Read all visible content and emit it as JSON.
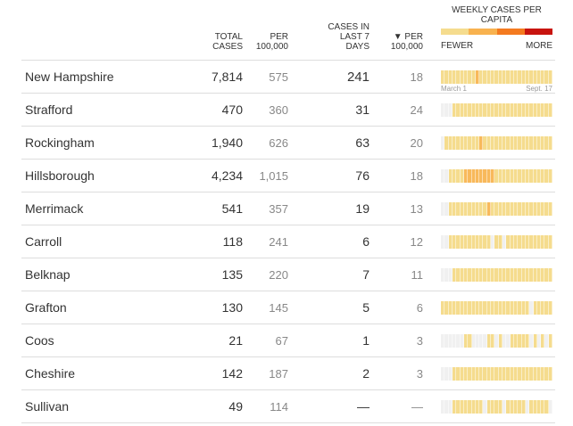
{
  "header": {
    "total": "TOTAL CASES",
    "per": "PER 100,000",
    "cases7": "CASES IN LAST 7 DAYS",
    "per7": "▼ PER 100,000",
    "legend_title": "WEEKLY CASES PER CAPITA",
    "fewer": "FEWER",
    "more": "MORE",
    "start_date": "March 1",
    "end_date": "Sept. 17"
  },
  "colors": {
    "0": "#f0f0f0",
    "1": "#f5dc8e",
    "2": "#f8b95b",
    "3": "#f47a1f",
    "4": "#c8140f"
  },
  "rows": [
    {
      "name": "New Hampshire",
      "total": "7,814",
      "per": "575",
      "cases7": "241",
      "per7": "18",
      "weeks": "11111111121111111111111111111"
    },
    {
      "name": "Strafford",
      "total": "470",
      "per": "360",
      "cases7": "31",
      "per7": "24",
      "weeks": "00011111111111111111111111111"
    },
    {
      "name": "Rockingham",
      "total": "1,940",
      "per": "626",
      "cases7": "63",
      "per7": "20",
      "weeks": "01111111112111111111111111111"
    },
    {
      "name": "Hillsborough",
      "total": "4,234",
      "per": "1,015",
      "cases7": "76",
      "per7": "18",
      "weeks": "00111122222222111111111111111"
    },
    {
      "name": "Merrimack",
      "total": "541",
      "per": "357",
      "cases7": "19",
      "per7": "13",
      "weeks": "00111111111121111111111111111"
    },
    {
      "name": "Carroll",
      "total": "118",
      "per": "241",
      "cases7": "6",
      "per7": "12",
      "weeks": "00111111111110110111111111111"
    },
    {
      "name": "Belknap",
      "total": "135",
      "per": "220",
      "cases7": "7",
      "per7": "11",
      "weeks": "00011111111111111111111111111"
    },
    {
      "name": "Grafton",
      "total": "130",
      "per": "145",
      "cases7": "5",
      "per7": "6",
      "weeks": "11111111111111111111111011111"
    },
    {
      "name": "Coos",
      "total": "21",
      "per": "67",
      "cases7": "1",
      "per7": "3",
      "weeks": "00000011000011010011111010101"
    },
    {
      "name": "Cheshire",
      "total": "142",
      "per": "187",
      "cases7": "2",
      "per7": "3",
      "weeks": "00011111111111111111111111111"
    },
    {
      "name": "Sullivan",
      "total": "49",
      "per": "114",
      "cases7": "—",
      "per7": "—",
      "weeks": "00011111111011110111110111110"
    }
  ]
}
